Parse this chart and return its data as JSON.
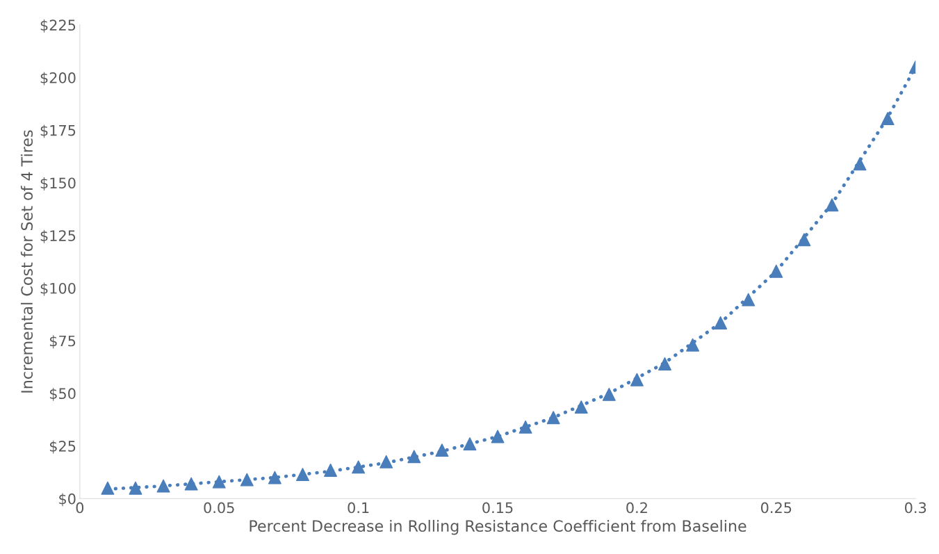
{
  "chart_data": {
    "type": "scatter",
    "xlabel": "Percent Decrease in Rolling Resistance Coefficient from Baseline",
    "ylabel": "Incremental Cost for Set of 4 Tires",
    "x": [
      0.01,
      0.02,
      0.03,
      0.04,
      0.05,
      0.06,
      0.07,
      0.08,
      0.09,
      0.1,
      0.11,
      0.12,
      0.13,
      0.14,
      0.15,
      0.16,
      0.17,
      0.18,
      0.19,
      0.2,
      0.21,
      0.22,
      0.23,
      0.24,
      0.25,
      0.26,
      0.27,
      0.28,
      0.29,
      0.3
    ],
    "series": [
      {
        "color": "#4a7ebb",
        "marker": "triangle",
        "values": [
          5,
          5,
          6,
          7,
          8,
          9,
          10,
          11.5,
          13.5,
          15,
          17.5,
          20,
          23,
          26,
          29.5,
          34,
          38.5,
          43.5,
          49.5,
          56.5,
          64,
          73,
          83.5,
          94.5,
          108,
          123,
          139.5,
          159,
          180.5,
          205
        ]
      },
      {
        "type": "line",
        "color": "#4a7ebb",
        "marker": "none",
        "line_style": "dotted",
        "x": [
          0.01,
          0.03,
          0.05,
          0.07,
          0.09,
          0.11,
          0.13,
          0.15,
          0.17,
          0.19,
          0.21,
          0.23,
          0.25,
          0.27,
          0.29,
          0.3
        ],
        "values": [
          4.5,
          6,
          8,
          10,
          13,
          17,
          22.5,
          29.5,
          38.5,
          50,
          64.5,
          83.5,
          108,
          140,
          181,
          205
        ]
      }
    ],
    "xlim": [
      0,
      0.3
    ],
    "xticks": [
      0,
      0.05,
      0.1,
      0.15,
      0.2,
      0.25,
      0.3
    ],
    "ylim": [
      0,
      225
    ],
    "yticks": [
      {
        "value": 0,
        "label": "$0"
      },
      {
        "value": 25,
        "label": "$25"
      },
      {
        "value": 50,
        "label": "$50"
      },
      {
        "value": 75,
        "label": "$75"
      },
      {
        "value": 100,
        "label": "$100"
      },
      {
        "value": 125,
        "label": "$125"
      },
      {
        "value": 150,
        "label": "$150"
      },
      {
        "value": 175,
        "label": "$175"
      },
      {
        "value": 200,
        "label": "$200"
      },
      {
        "value": 225,
        "label": "$225"
      }
    ],
    "grid": false,
    "legend": false
  }
}
